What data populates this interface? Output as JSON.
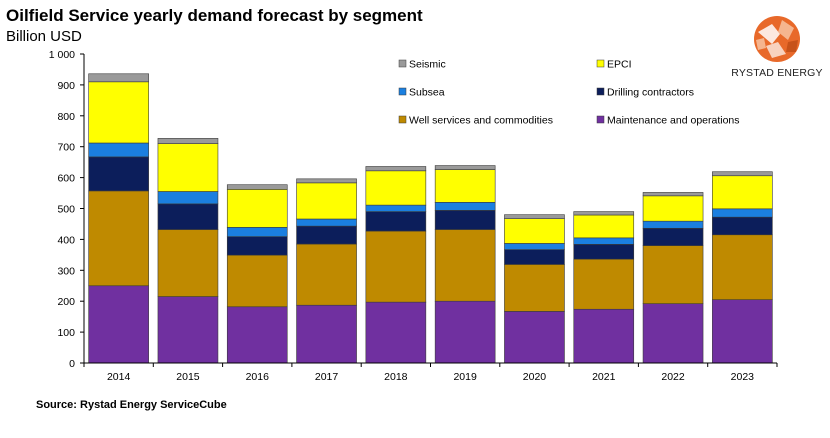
{
  "header": {
    "title": "Oilfield Service yearly demand forecast by segment",
    "subtitle": "Billion USD"
  },
  "logo": {
    "text": "RYSTAD ENERGY"
  },
  "footer": {
    "source": "Source: Rystad Energy ServiceCube"
  },
  "colors": {
    "maintenance": "#7030a0",
    "well_services": "#bf8a00",
    "drilling": "#0c1e5b",
    "subsea": "#1b7fe0",
    "epci": "#ffff00",
    "seismic": "#9a9a9a",
    "axis": "#000000",
    "logo_orange": "#e8692a"
  },
  "chart_data": {
    "type": "bar",
    "stacked": true,
    "title": "Oilfield Service yearly demand forecast by segment",
    "ylabel": "Billion USD",
    "xlabel": "",
    "ylim": [
      0,
      1000
    ],
    "yticks": [
      0,
      100,
      200,
      300,
      400,
      500,
      600,
      700,
      800,
      900,
      1000
    ],
    "ytick_labels": [
      "0",
      "100",
      "200",
      "300",
      "400",
      "500",
      "600",
      "700",
      "800",
      "900",
      "1 000"
    ],
    "grid": false,
    "categories": [
      "2014",
      "2015",
      "2016",
      "2017",
      "2018",
      "2019",
      "2020",
      "2021",
      "2022",
      "2023"
    ],
    "series": [
      {
        "name": "Maintenance and operations",
        "key": "maintenance",
        "values": [
          250,
          215,
          182,
          187,
          197,
          200,
          167,
          174,
          192,
          205
        ]
      },
      {
        "name": "Well services and commodities",
        "key": "well_services",
        "values": [
          307,
          217,
          167,
          198,
          230,
          232,
          152,
          162,
          188,
          210
        ]
      },
      {
        "name": "Drilling contractors",
        "key": "drilling",
        "values": [
          110,
          83,
          60,
          58,
          63,
          62,
          48,
          48,
          56,
          57
        ]
      },
      {
        "name": "Subsea",
        "key": "subsea",
        "values": [
          45,
          40,
          30,
          23,
          21,
          26,
          20,
          21,
          23,
          27
        ]
      },
      {
        "name": "EPCI",
        "key": "epci",
        "values": [
          198,
          155,
          123,
          117,
          111,
          106,
          80,
          74,
          82,
          107
        ]
      },
      {
        "name": "Seismic",
        "key": "seismic",
        "values": [
          26,
          17,
          15,
          13,
          14,
          13,
          13,
          11,
          11,
          13
        ]
      }
    ],
    "legend": {
      "placement": "top-right",
      "order": [
        "Seismic",
        "EPCI",
        "Subsea",
        "Drilling contractors",
        "Well services and commodities",
        "Maintenance and operations"
      ]
    }
  }
}
